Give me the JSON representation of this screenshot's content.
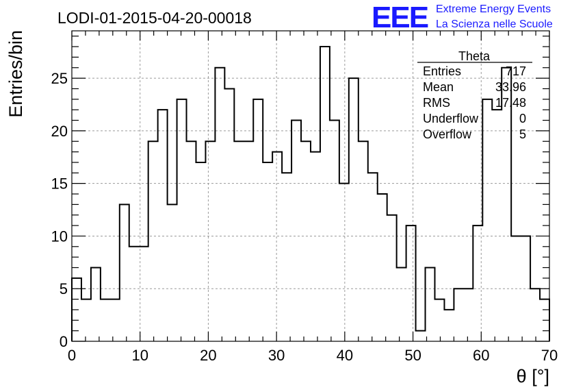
{
  "chart_data": {
    "type": "bar",
    "style": "step-histogram",
    "title": "LODI-01-2015-04-20-00018",
    "xlabel": "θ [°]",
    "ylabel": "Entries/bin",
    "xlim": [
      0,
      70
    ],
    "ylim": [
      0,
      29.5
    ],
    "grid": true,
    "bin_width": 1.4,
    "x_ticks": [
      0,
      10,
      20,
      30,
      40,
      50,
      60,
      70
    ],
    "x_tick_labels": [
      "0",
      "10",
      "20",
      "30",
      "40",
      "50",
      "60",
      "70"
    ],
    "y_ticks": [
      0,
      5,
      10,
      15,
      20,
      25
    ],
    "y_tick_labels": [
      "0",
      "5",
      "10",
      "15",
      "20",
      "25"
    ],
    "bin_edges_start": 0,
    "values": [
      6,
      4,
      7,
      4,
      4,
      13,
      9,
      9,
      19,
      22,
      13,
      23,
      19,
      17,
      19,
      26,
      24,
      19,
      19,
      23,
      17,
      18,
      16,
      21,
      19,
      18,
      28,
      21,
      15,
      25,
      19,
      16,
      14,
      12,
      7,
      11,
      1,
      7,
      4,
      3,
      5,
      5,
      11,
      23,
      22,
      26,
      10,
      10,
      5,
      4
    ],
    "line_color": "#000000",
    "stats_box": {
      "title": "Theta",
      "position": "top-right",
      "rows": [
        {
          "label": "Entries",
          "value": "717"
        },
        {
          "label": "Mean",
          "value": "33.96"
        },
        {
          "label": "RMS",
          "value": "17.48"
        },
        {
          "label": "Underflow",
          "value": "0"
        },
        {
          "label": "Overflow",
          "value": "5"
        }
      ]
    }
  },
  "logo": {
    "mark": "EEE",
    "line1": "Extreme Energy Events",
    "line2": "La Scienza nelle Scuole",
    "color": "#1a1aff"
  }
}
